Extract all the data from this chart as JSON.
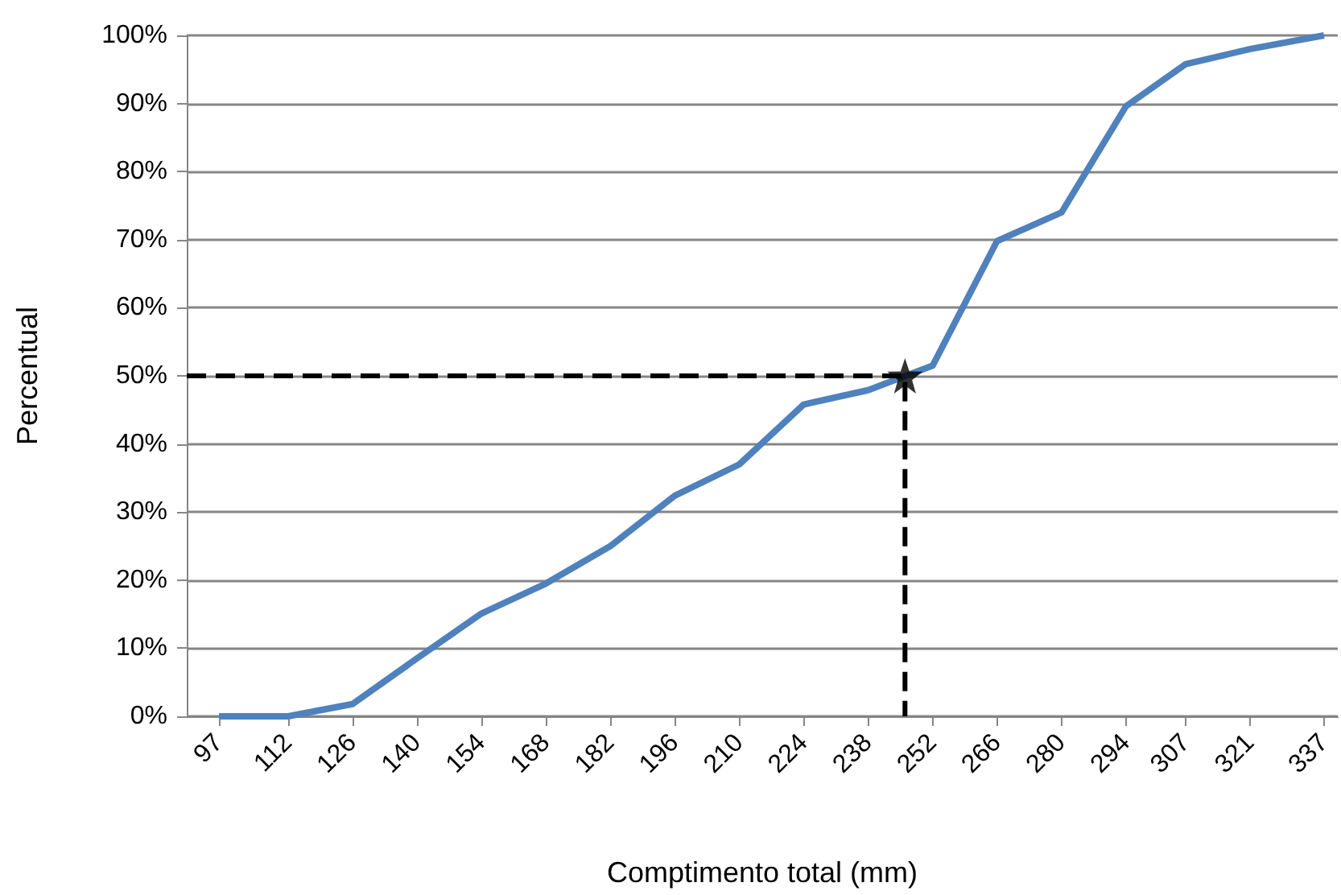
{
  "chart_data": {
    "type": "line",
    "xlabel": "Comptimento total (mm)",
    "ylabel": "Percentual",
    "xlim": [
      90,
      340
    ],
    "xticks": [
      97,
      112,
      126,
      140,
      154,
      168,
      182,
      196,
      210,
      224,
      238,
      252,
      266,
      280,
      294,
      307,
      321,
      337
    ],
    "ylim": [
      0,
      100
    ],
    "yticks": [
      {
        "value": 0,
        "label": "0%"
      },
      {
        "value": 10,
        "label": "10%"
      },
      {
        "value": 20,
        "label": "20%"
      },
      {
        "value": 30,
        "label": "30%"
      },
      {
        "value": 40,
        "label": "40%"
      },
      {
        "value": 50,
        "label": "50%"
      },
      {
        "value": 60,
        "label": "60%"
      },
      {
        "value": 70,
        "label": "70%"
      },
      {
        "value": 80,
        "label": "80%"
      },
      {
        "value": 90,
        "label": "90%"
      },
      {
        "value": 100,
        "label": "100%"
      }
    ],
    "grid": "y",
    "marker": "none",
    "line_style": "solid",
    "series": [
      {
        "color": "#4f81bd",
        "x": [
          97,
          112,
          126,
          140,
          154,
          168,
          182,
          196,
          210,
          224,
          238,
          252,
          266,
          280,
          294,
          307,
          321,
          337
        ],
        "values": [
          0,
          0,
          1.8,
          8.5,
          15.1,
          19.5,
          25,
          32.4,
          37,
          45.8,
          47.9,
          51.5,
          69.8,
          74,
          89.6,
          95.8,
          98,
          100
        ]
      },
      {
        "type": "line",
        "color": "#000000",
        "line_style": "dashed",
        "marker": "none",
        "x": [
          90,
          246,
          246
        ],
        "values": [
          50,
          50,
          0
        ]
      },
      {
        "type": "scatter",
        "color": "#000000",
        "marker": "star",
        "x": [
          246
        ],
        "values": [
          50
        ]
      }
    ]
  }
}
